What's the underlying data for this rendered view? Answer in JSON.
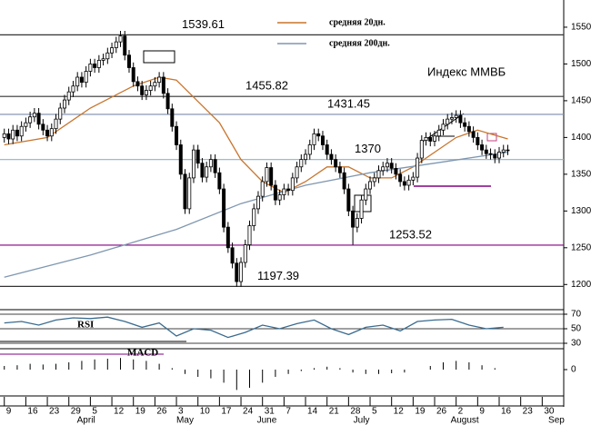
{
  "chart_data": [
    {
      "type": "candlestick",
      "title": "Индекс ММВБ",
      "x": [
        0,
        1,
        2,
        3,
        4,
        5,
        6,
        7,
        8,
        9,
        10,
        11,
        12,
        13,
        14,
        15,
        16,
        17,
        18,
        19,
        20,
        21,
        22,
        23,
        24,
        25,
        26,
        27,
        28,
        29,
        30,
        31,
        32,
        33,
        34,
        35,
        36,
        37,
        38,
        39,
        40,
        41,
        42,
        43,
        44,
        45,
        46,
        47,
        48,
        49,
        50,
        51,
        52,
        53,
        54,
        55,
        56,
        57,
        58,
        59,
        60,
        61,
        62,
        63,
        64,
        65,
        66,
        67,
        68,
        69,
        70,
        71,
        72,
        73,
        74,
        75,
        76,
        77,
        78,
        79,
        80,
        81,
        82,
        83,
        84,
        85,
        86,
        87,
        88,
        89,
        90,
        91,
        92,
        93,
        94,
        95,
        96,
        97,
        98,
        99,
        100,
        101,
        102,
        103,
        104,
        105,
        106,
        107,
        108,
        109,
        110,
        111,
        112,
        113,
        114,
        115,
        116,
        117
      ],
      "open": [
        1400,
        1405,
        1398,
        1410,
        1402,
        1415,
        1420,
        1428,
        1433,
        1418,
        1410,
        1402,
        1412,
        1425,
        1440,
        1451,
        1462,
        1470,
        1482,
        1475,
        1490,
        1500,
        1495,
        1505,
        1507,
        1515,
        1522,
        1530,
        1538,
        1512,
        1495,
        1476,
        1470,
        1458,
        1464,
        1470,
        1475,
        1482,
        1460,
        1439,
        1415,
        1390,
        1350,
        1303,
        1345,
        1383,
        1365,
        1346,
        1360,
        1370,
        1352,
        1330,
        1278,
        1250,
        1229,
        1204,
        1230,
        1254,
        1280,
        1303,
        1320,
        1340,
        1359,
        1335,
        1315,
        1322,
        1330,
        1328,
        1345,
        1360,
        1370,
        1377,
        1390,
        1405,
        1402,
        1390,
        1377,
        1370,
        1360,
        1352,
        1330,
        1300,
        1278,
        1290,
        1315,
        1330,
        1340,
        1345,
        1355,
        1360,
        1365,
        1358,
        1350,
        1340,
        1335,
        1342,
        1346,
        1372,
        1396,
        1400,
        1395,
        1402,
        1410,
        1418,
        1425,
        1427,
        1430,
        1420,
        1415,
        1408,
        1400,
        1390,
        1383,
        1378,
        1377,
        1372,
        1380,
        1383
      ],
      "high": [
        1412,
        1412,
        1417,
        1417,
        1422,
        1427,
        1435,
        1440,
        1440,
        1425,
        1417,
        1419,
        1432,
        1447,
        1458,
        1469,
        1477,
        1489,
        1489,
        1497,
        1507,
        1507,
        1512,
        1514,
        1522,
        1529,
        1537,
        1545,
        1545,
        1519,
        1502,
        1483,
        1477,
        1471,
        1477,
        1482,
        1489,
        1489,
        1467,
        1446,
        1422,
        1397,
        1357,
        1352,
        1390,
        1390,
        1372,
        1367,
        1377,
        1377,
        1359,
        1337,
        1285,
        1257,
        1236,
        1237,
        1261,
        1287,
        1310,
        1327,
        1347,
        1366,
        1366,
        1342,
        1329,
        1337,
        1337,
        1352,
        1367,
        1377,
        1384,
        1397,
        1412,
        1412,
        1409,
        1397,
        1384,
        1377,
        1367,
        1359,
        1337,
        1307,
        1297,
        1322,
        1337,
        1347,
        1352,
        1362,
        1367,
        1372,
        1372,
        1365,
        1357,
        1347,
        1349,
        1353,
        1379,
        1403,
        1407,
        1407,
        1409,
        1417,
        1425,
        1432,
        1434,
        1437,
        1437,
        1427,
        1422,
        1415,
        1407,
        1397,
        1390,
        1385,
        1384,
        1387,
        1390,
        1390
      ],
      "low": [
        1393,
        1391,
        1391,
        1395,
        1395,
        1408,
        1413,
        1421,
        1411,
        1403,
        1395,
        1395,
        1405,
        1418,
        1433,
        1444,
        1455,
        1463,
        1468,
        1468,
        1483,
        1488,
        1488,
        1498,
        1500,
        1508,
        1515,
        1523,
        1505,
        1488,
        1469,
        1463,
        1451,
        1451,
        1457,
        1463,
        1468,
        1453,
        1432,
        1408,
        1383,
        1343,
        1296,
        1296,
        1338,
        1358,
        1339,
        1339,
        1353,
        1345,
        1323,
        1271,
        1243,
        1222,
        1197,
        1197,
        1223,
        1247,
        1273,
        1296,
        1313,
        1333,
        1328,
        1308,
        1308,
        1315,
        1321,
        1321,
        1338,
        1353,
        1363,
        1370,
        1383,
        1395,
        1383,
        1370,
        1363,
        1353,
        1345,
        1323,
        1293,
        1254,
        1271,
        1283,
        1308,
        1323,
        1333,
        1338,
        1348,
        1353,
        1351,
        1343,
        1333,
        1328,
        1328,
        1335,
        1339,
        1365,
        1389,
        1388,
        1388,
        1395,
        1403,
        1411,
        1418,
        1420,
        1413,
        1408,
        1401,
        1393,
        1383,
        1376,
        1371,
        1370,
        1365,
        1365,
        1373,
        1376
      ],
      "close": [
        1405,
        1398,
        1410,
        1402,
        1415,
        1420,
        1428,
        1433,
        1418,
        1410,
        1402,
        1412,
        1425,
        1440,
        1451,
        1462,
        1470,
        1482,
        1475,
        1490,
        1500,
        1495,
        1505,
        1507,
        1515,
        1522,
        1530,
        1538,
        1512,
        1495,
        1476,
        1470,
        1458,
        1464,
        1470,
        1475,
        1482,
        1460,
        1439,
        1415,
        1390,
        1350,
        1303,
        1345,
        1383,
        1365,
        1346,
        1360,
        1370,
        1352,
        1330,
        1278,
        1250,
        1229,
        1204,
        1230,
        1254,
        1280,
        1303,
        1320,
        1340,
        1359,
        1335,
        1315,
        1322,
        1330,
        1328,
        1345,
        1360,
        1370,
        1377,
        1390,
        1405,
        1402,
        1390,
        1377,
        1370,
        1360,
        1352,
        1330,
        1300,
        1278,
        1290,
        1315,
        1330,
        1340,
        1345,
        1355,
        1360,
        1365,
        1358,
        1350,
        1340,
        1335,
        1342,
        1346,
        1372,
        1396,
        1400,
        1395,
        1402,
        1410,
        1418,
        1425,
        1427,
        1430,
        1420,
        1415,
        1408,
        1400,
        1390,
        1383,
        1378,
        1377,
        1372,
        1380,
        1383,
        1383
      ],
      "up_color": "#ffffff",
      "down_color": "#000000",
      "series": [
        {
          "name": "средняя 20дн.",
          "color": "#c8742c",
          "x": [
            0,
            10,
            20,
            30,
            36,
            40,
            50,
            55,
            60,
            65,
            70,
            75,
            80,
            85,
            90,
            95,
            100,
            105,
            110,
            117
          ],
          "values": [
            1390,
            1400,
            1440,
            1470,
            1482,
            1478,
            1420,
            1370,
            1340,
            1325,
            1340,
            1360,
            1360,
            1345,
            1345,
            1360,
            1380,
            1400,
            1410,
            1398
          ]
        },
        {
          "name": "средняя 200дн.",
          "color": "#7f97b0",
          "x": [
            0,
            20,
            40,
            55,
            70,
            85,
            100,
            117
          ],
          "values": [
            1210,
            1240,
            1275,
            1310,
            1335,
            1352,
            1365,
            1380
          ]
        }
      ],
      "levels": [
        1539.61,
        1455.82,
        1431.45,
        1370,
        1253.52,
        1197.39
      ],
      "level_colors": [
        "#333333",
        "#333333",
        "#7a8ea8",
        "#8fb3c9",
        "#800080",
        "#333333"
      ],
      "xlim": [
        -1,
        130
      ],
      "ylim": [
        1167,
        1587
      ],
      "yticks": [
        1200,
        1250,
        1300,
        1350,
        1400,
        1450,
        1500,
        1550
      ],
      "xticks": [
        {
          "value": 0,
          "label": "9"
        },
        {
          "value": 5,
          "label": "16"
        },
        {
          "value": 10,
          "label": "23"
        },
        {
          "value": 15,
          "label": "29"
        },
        {
          "value": 20,
          "label": "5"
        },
        {
          "value": 25,
          "label": "12"
        },
        {
          "value": 30,
          "label": "19"
        },
        {
          "value": 35,
          "label": "26"
        },
        {
          "value": 40,
          "label": "3"
        },
        {
          "value": 45,
          "label": "10"
        },
        {
          "value": 50,
          "label": "17"
        },
        {
          "value": 55,
          "label": "24"
        },
        {
          "value": 60,
          "label": "31"
        },
        {
          "value": 65,
          "label": "7"
        },
        {
          "value": 70,
          "label": "14"
        },
        {
          "value": 75,
          "label": "21"
        },
        {
          "value": 80,
          "label": "28"
        },
        {
          "value": 85,
          "label": "5"
        },
        {
          "value": 90,
          "label": "12"
        },
        {
          "value": 95,
          "label": "19"
        },
        {
          "value": 100,
          "label": "26"
        },
        {
          "value": 105,
          "label": "2"
        },
        {
          "value": 110,
          "label": "9"
        },
        {
          "value": 115,
          "label": "16"
        },
        {
          "value": 120,
          "label": "23"
        },
        {
          "value": 125,
          "label": "30"
        }
      ],
      "months": [
        {
          "value": 19,
          "label": "April"
        },
        {
          "value": 42,
          "label": "May"
        },
        {
          "value": 61,
          "label": "June"
        },
        {
          "value": 83,
          "label": "July"
        },
        {
          "value": 107,
          "label": "August"
        },
        {
          "value": 128.3,
          "label": "Sep"
        }
      ]
    },
    {
      "type": "line",
      "name": "RSI",
      "color": "#3a6b8f",
      "x": [
        0,
        4,
        8,
        12,
        16,
        20,
        24,
        28,
        32,
        36,
        40,
        44,
        48,
        52,
        56,
        60,
        64,
        68,
        72,
        76,
        80,
        84,
        88,
        92,
        96,
        100,
        104,
        108,
        112,
        116
      ],
      "values": [
        58,
        60,
        55,
        62,
        65,
        64,
        66,
        60,
        52,
        58,
        40,
        50,
        48,
        38,
        45,
        55,
        50,
        57,
        62,
        50,
        42,
        52,
        55,
        47,
        60,
        62,
        63,
        55,
        50,
        52
      ],
      "xlim": [
        -1,
        130
      ],
      "ylim": [
        25,
        75
      ],
      "yticks": [
        30,
        50,
        70
      ]
    },
    {
      "type": "bar",
      "name": "MACD",
      "color": "#000000",
      "x": [
        0,
        3,
        6,
        9,
        12,
        15,
        18,
        21,
        24,
        27,
        30,
        33,
        36,
        39,
        42,
        45,
        48,
        51,
        54,
        57,
        60,
        63,
        66,
        69,
        72,
        75,
        78,
        81,
        84,
        87,
        90,
        93,
        96,
        99,
        102,
        105,
        108,
        111,
        114,
        117
      ],
      "values": [
        5,
        6,
        8,
        7,
        8,
        10,
        12,
        14,
        15,
        16,
        14,
        12,
        8,
        2,
        -6,
        -10,
        -12,
        -18,
        -28,
        -25,
        -18,
        -10,
        -6,
        -2,
        2,
        4,
        2,
        -4,
        -6,
        -6,
        -5,
        -4,
        0,
        5,
        10,
        12,
        10,
        6,
        2,
        0
      ],
      "xlim": [
        -1,
        130
      ],
      "ylim": [
        -35,
        25
      ],
      "yticks": [
        0
      ]
    }
  ]
}
